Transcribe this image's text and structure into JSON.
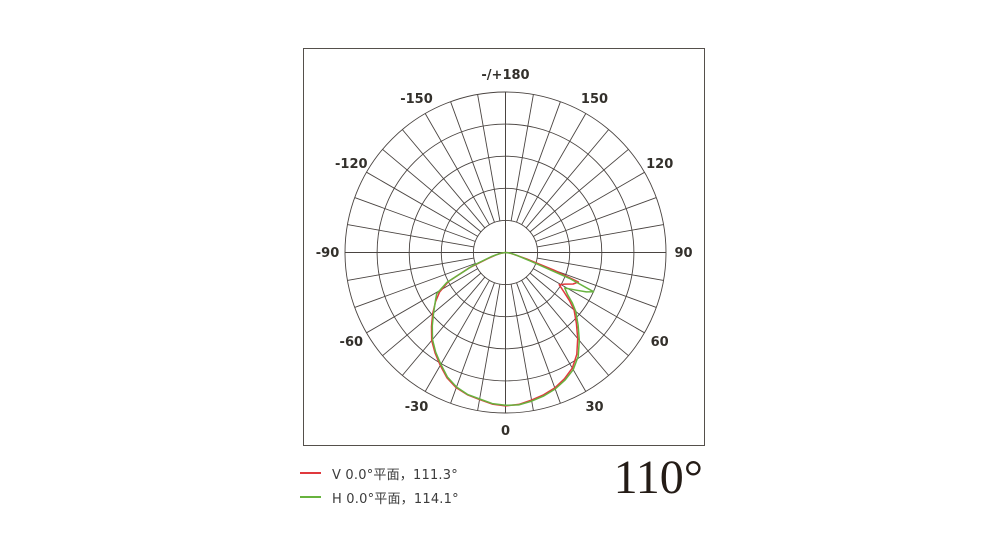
{
  "colors": {
    "background": "#ffffff",
    "frame_border": "#55504b",
    "grid": "#4a4441",
    "axis_label": "#33302b",
    "series_v": "#e0393e",
    "series_h": "#67b33e",
    "legend_text": "#3b3b3b",
    "big_angle_text": "#241c16"
  },
  "legend": {
    "items": [
      {
        "label": "V 0.0°平面，111.3°",
        "color": "#e0393e",
        "icon": "dash"
      },
      {
        "label": "H 0.0°平面，114.1°",
        "color": "#67b33e",
        "icon": "dash"
      }
    ]
  },
  "beam_angle_label": "110°",
  "chart_data": {
    "type": "line",
    "subtype": "polar-luminous-intensity-distribution",
    "title": "",
    "angle_unit": "degrees",
    "zero_direction": "down",
    "angle_range": [
      -180,
      180
    ],
    "rings": 5,
    "spoke_step_deg": 10,
    "radial_scale": "normalized 0..1, outer ring = 1",
    "grid_on": true,
    "legend_position": "below-left",
    "angle_labels": [
      {
        "angle": 180,
        "text": "-/+180"
      },
      {
        "angle": -150,
        "text": "-150"
      },
      {
        "angle": 150,
        "text": "150"
      },
      {
        "angle": -120,
        "text": "-120"
      },
      {
        "angle": 120,
        "text": "120"
      },
      {
        "angle": -90,
        "text": "-90"
      },
      {
        "angle": 90,
        "text": "90"
      },
      {
        "angle": -60,
        "text": "-60"
      },
      {
        "angle": 60,
        "text": "60"
      },
      {
        "angle": -30,
        "text": "-30"
      },
      {
        "angle": 30,
        "text": "30"
      },
      {
        "angle": 0,
        "text": "0"
      }
    ],
    "series": [
      {
        "name": "V 0.0°平面",
        "beam_angle": "111.3°",
        "color": "#e0393e",
        "points": [
          [
            -90,
            0
          ],
          [
            -82,
            0.025
          ],
          [
            -76,
            0.06
          ],
          [
            -71,
            0.12
          ],
          [
            -67,
            0.25
          ],
          [
            -63,
            0.4
          ],
          [
            -59,
            0.48
          ],
          [
            -55,
            0.532
          ],
          [
            -50,
            0.592
          ],
          [
            -45,
            0.652
          ],
          [
            -40,
            0.715
          ],
          [
            -35,
            0.765
          ],
          [
            -30,
            0.812
          ],
          [
            -25,
            0.862
          ],
          [
            -20,
            0.897
          ],
          [
            -15,
            0.918
          ],
          [
            -10,
            0.93
          ],
          [
            -5,
            0.948
          ],
          [
            0,
            0.956
          ],
          [
            5,
            0.95
          ],
          [
            10,
            0.934
          ],
          [
            15,
            0.918
          ],
          [
            20,
            0.898
          ],
          [
            25,
            0.868
          ],
          [
            30,
            0.832
          ],
          [
            35,
            0.775
          ],
          [
            40,
            0.7
          ],
          [
            45,
            0.625
          ],
          [
            50,
            0.558
          ],
          [
            53,
            0.5
          ],
          [
            56,
            0.44
          ],
          [
            59,
            0.39
          ],
          [
            62,
            0.42
          ],
          [
            65,
            0.465
          ],
          [
            68,
            0.49
          ],
          [
            70,
            0.32
          ],
          [
            73,
            0.14
          ],
          [
            78,
            0.05
          ],
          [
            84,
            0.02
          ],
          [
            90,
            0
          ]
        ]
      },
      {
        "name": "H 0.0°平面",
        "beam_angle": "114.1°",
        "color": "#67b33e",
        "points": [
          [
            -90,
            0
          ],
          [
            -82,
            0.03
          ],
          [
            -74,
            0.09
          ],
          [
            -68,
            0.22
          ],
          [
            -63,
            0.41
          ],
          [
            -59,
            0.5
          ],
          [
            -56,
            0.525
          ],
          [
            -50,
            0.585
          ],
          [
            -45,
            0.645
          ],
          [
            -40,
            0.708
          ],
          [
            -35,
            0.758
          ],
          [
            -30,
            0.805
          ],
          [
            -25,
            0.856
          ],
          [
            -20,
            0.892
          ],
          [
            -15,
            0.915
          ],
          [
            -10,
            0.927
          ],
          [
            -5,
            0.945
          ],
          [
            0,
            0.952
          ],
          [
            5,
            0.953
          ],
          [
            10,
            0.94
          ],
          [
            15,
            0.925
          ],
          [
            20,
            0.905
          ],
          [
            25,
            0.877
          ],
          [
            30,
            0.843
          ],
          [
            35,
            0.79
          ],
          [
            40,
            0.715
          ],
          [
            45,
            0.64
          ],
          [
            50,
            0.572
          ],
          [
            53,
            0.52
          ],
          [
            56,
            0.465
          ],
          [
            59,
            0.43
          ],
          [
            62,
            0.5
          ],
          [
            64,
            0.56
          ],
          [
            66,
            0.6
          ],
          [
            68,
            0.43
          ],
          [
            71,
            0.17
          ],
          [
            76,
            0.07
          ],
          [
            83,
            0.03
          ],
          [
            90,
            0
          ]
        ]
      }
    ]
  }
}
